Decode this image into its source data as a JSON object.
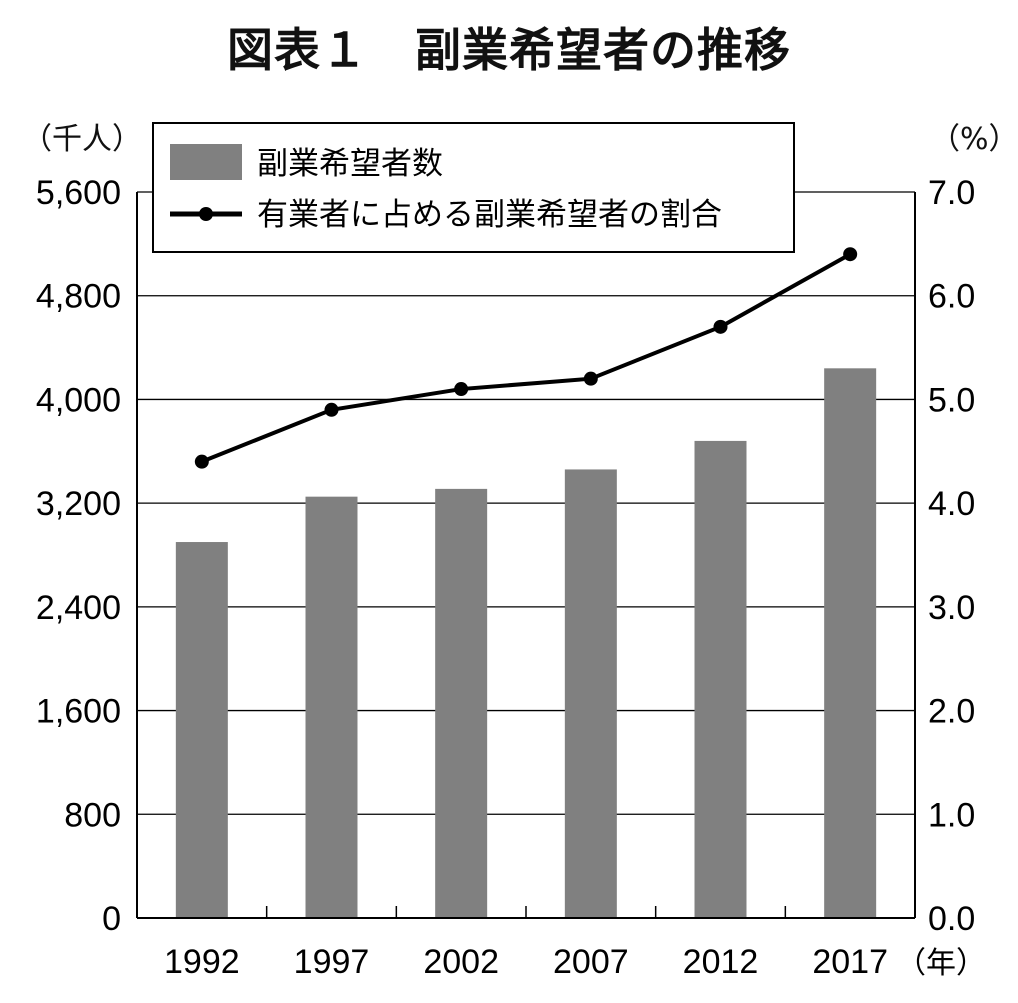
{
  "title": "図表１　副業希望者の推移",
  "chart_data": {
    "type": "bar",
    "categories": [
      "1992",
      "1997",
      "2002",
      "2007",
      "2012",
      "2017"
    ],
    "x_unit": "（年）",
    "series": [
      {
        "name": "副業希望者数",
        "type": "bar",
        "axis": "left",
        "color": "#808080",
        "values": [
          2900,
          3250,
          3310,
          3460,
          3680,
          4240
        ]
      },
      {
        "name": "有業者に占める副業希望者の割合",
        "type": "line",
        "axis": "right",
        "color": "#000000",
        "values": [
          4.4,
          4.9,
          5.1,
          5.2,
          5.7,
          6.4
        ]
      }
    ],
    "y_left": {
      "unit": "（千人）",
      "ylim": [
        0,
        5600
      ],
      "ticks": [
        "0",
        "800",
        "1,600",
        "2,400",
        "3,200",
        "4,000",
        "4,800",
        "5,600"
      ]
    },
    "y_right": {
      "unit": "（%）",
      "ylim": [
        0,
        7.0
      ],
      "ticks": [
        "0.0",
        "1.0",
        "2.0",
        "3.0",
        "4.0",
        "5.0",
        "6.0",
        "7.0"
      ]
    },
    "grid": true,
    "legend_position": "top-left"
  }
}
